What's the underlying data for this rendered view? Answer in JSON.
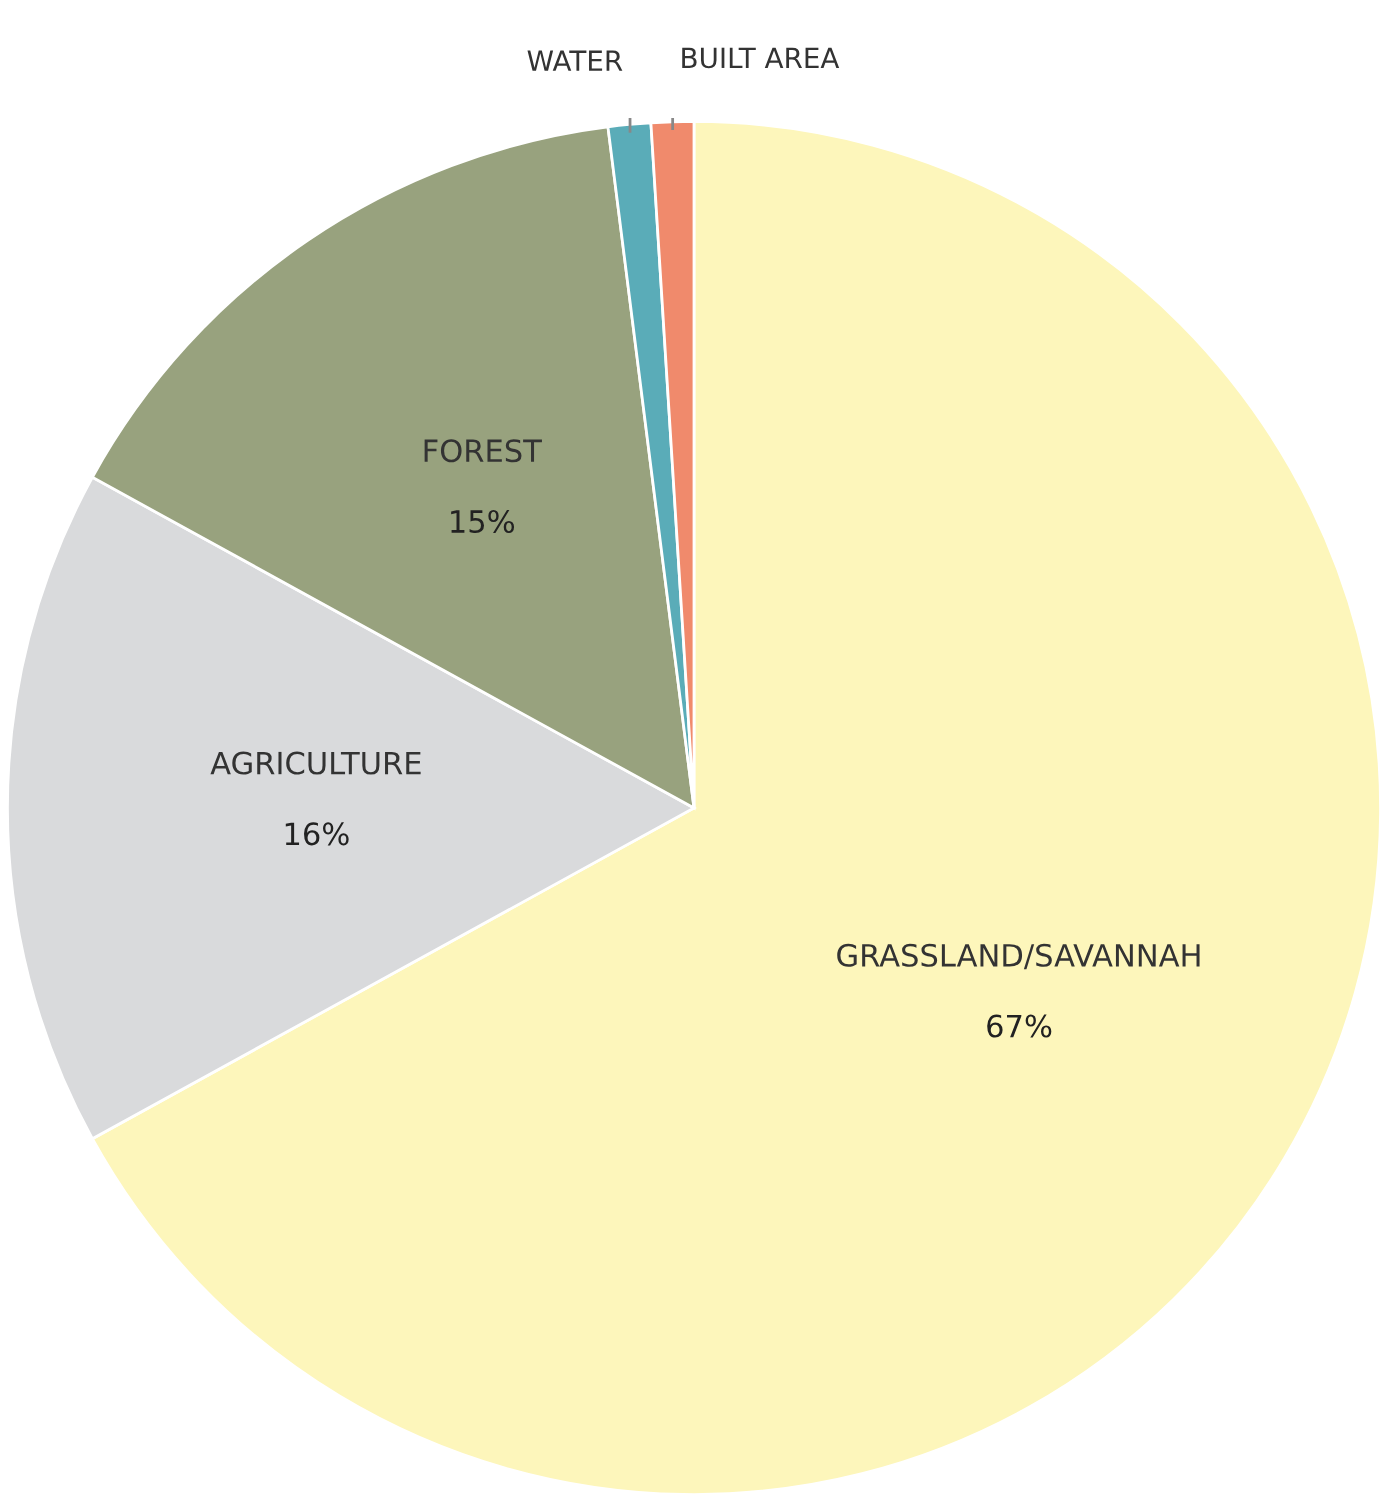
{
  "chart_data": {
    "type": "pie",
    "categories": [
      "GRASSLAND/SAVANNAH",
      "AGRICULTURE",
      "FOREST",
      "WATER",
      "BUILT AREA"
    ],
    "values": [
      67,
      16,
      15,
      1,
      1
    ],
    "colors": [
      "#fdf6bb",
      "#d9dadc",
      "#98a27e",
      "#5aacb8",
      "#f08a6c"
    ],
    "value_labels": [
      "67%",
      "16%",
      "15%",
      null,
      null
    ]
  }
}
